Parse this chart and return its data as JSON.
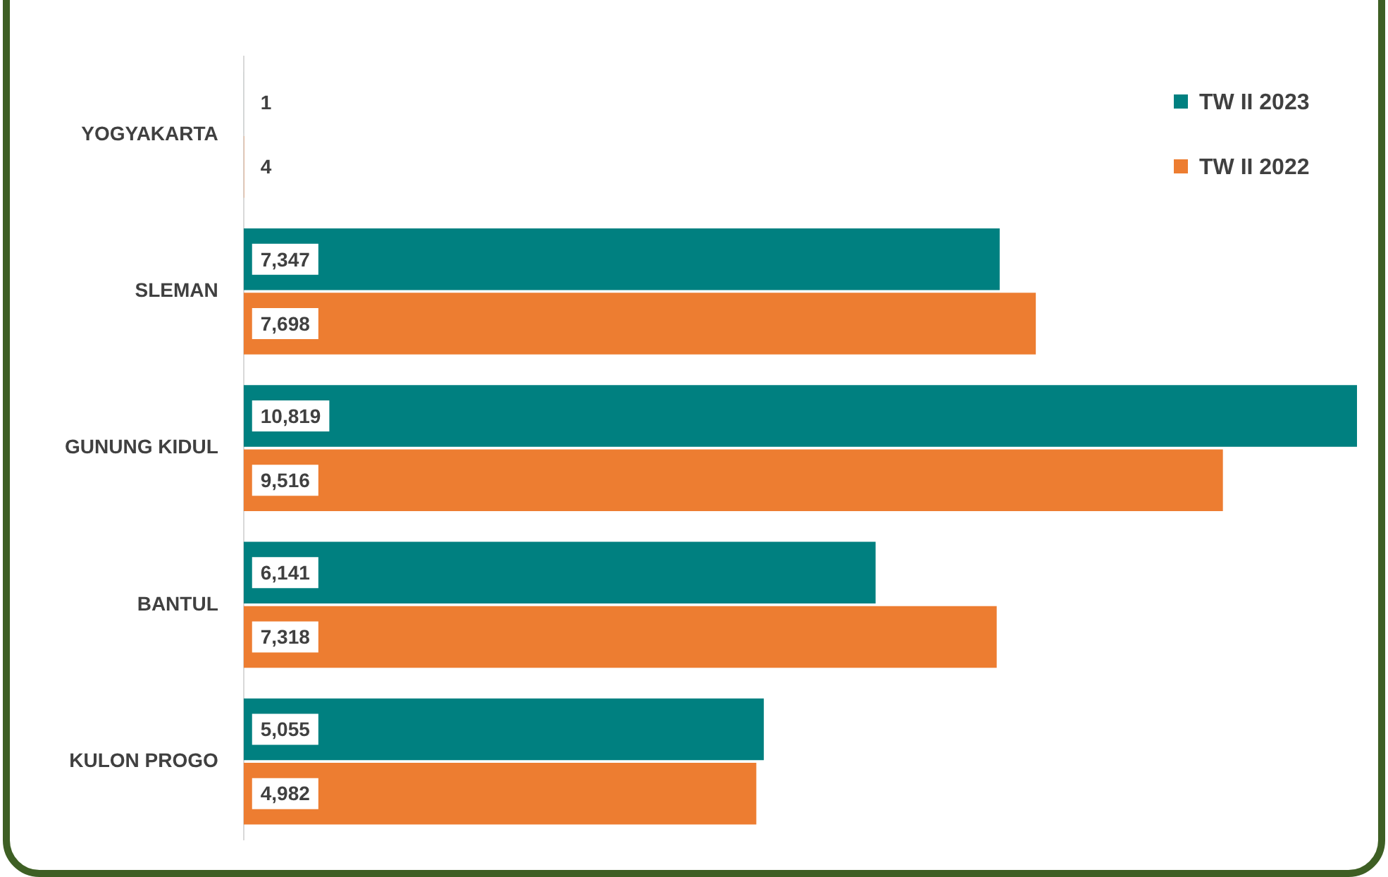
{
  "chart_data": {
    "type": "bar",
    "orientation": "horizontal",
    "categories": [
      "YOGYAKARTA",
      "SLEMAN",
      "GUNUNG KIDUL",
      "BANTUL",
      "KULON PROGO"
    ],
    "series": [
      {
        "name": "TW II 2023",
        "color": "#008080",
        "values": [
          1,
          7347,
          10819,
          6141,
          5055
        ],
        "value_labels": [
          "1",
          "7,347",
          "10,819",
          "6,141",
          "5,055"
        ]
      },
      {
        "name": "TW II 2022",
        "color": "#ed7d31",
        "values": [
          4,
          7698,
          9516,
          7318,
          4982
        ],
        "value_labels": [
          "4",
          "7,698",
          "9,516",
          "7,318",
          "4,982"
        ]
      }
    ],
    "xlim": [
      0,
      10819
    ],
    "tick_labels": "y",
    "legend": "top right",
    "grid": false
  }
}
